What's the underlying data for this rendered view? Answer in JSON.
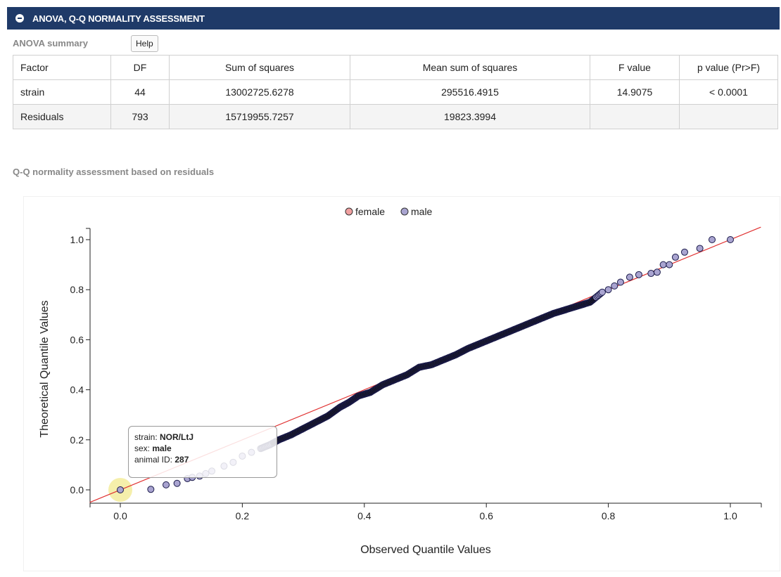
{
  "header": {
    "title": "ANOVA, Q-Q NORMALITY ASSESSMENT"
  },
  "anova": {
    "title": "ANOVA summary",
    "help_label": "Help",
    "columns": [
      "Factor",
      "DF",
      "Sum of squares",
      "Mean sum of squares",
      "F value",
      "p value (Pr>F)"
    ],
    "rows": [
      [
        "strain",
        "44",
        "13002725.6278",
        "295516.4915",
        "14.9075",
        "< 0.0001"
      ],
      [
        "Residuals",
        "793",
        "15719955.7257",
        "19823.3994",
        "",
        ""
      ]
    ]
  },
  "qq": {
    "title": "Q-Q normality assessment based on residuals"
  },
  "tooltip": {
    "strain_label": "strain: ",
    "strain_value": "NOR/LtJ",
    "sex_label": "sex: ",
    "sex_value": "male",
    "id_label": "animal ID: ",
    "id_value": "287"
  },
  "colors": {
    "header_bg": "#1f3a68",
    "female": "#f0a0a0",
    "male": "#a9a4d0",
    "point_stroke": "#1a1a4a",
    "ref_line": "#e03030",
    "highlight": "#f3ec9c"
  },
  "chart_data": {
    "type": "scatter",
    "xlabel": "Observed Quantile Values",
    "ylabel": "Theoretical Quantile Values",
    "xlim": [
      -0.05,
      1.05
    ],
    "ylim": [
      -0.05,
      1.05
    ],
    "x_ticks": [
      "0.0",
      "0.2",
      "0.4",
      "0.6",
      "0.8",
      "1.0"
    ],
    "y_ticks": [
      "0.0",
      "0.2",
      "0.4",
      "0.6",
      "0.8",
      "1.0"
    ],
    "legend": [
      {
        "name": "female",
        "color": "#f0a0a0"
      },
      {
        "name": "male",
        "color": "#a9a4d0"
      }
    ],
    "legend_position": "top-center",
    "reference_line": [
      [
        -0.05,
        -0.05
      ],
      [
        1.05,
        1.05
      ]
    ],
    "series": [
      {
        "name": "male",
        "points": [
          [
            0.0,
            0.0
          ],
          [
            0.05,
            0.002
          ],
          [
            0.075,
            0.02
          ],
          [
            0.093,
            0.026
          ],
          [
            0.11,
            0.045
          ],
          [
            0.118,
            0.05
          ],
          [
            0.13,
            0.055
          ],
          [
            0.14,
            0.065
          ],
          [
            0.15,
            0.075
          ],
          [
            0.17,
            0.095
          ],
          [
            0.185,
            0.11
          ],
          [
            0.2,
            0.135
          ],
          [
            0.215,
            0.15
          ],
          [
            0.23,
            0.165
          ],
          [
            0.245,
            0.18
          ],
          [
            0.26,
            0.2
          ],
          [
            0.28,
            0.22
          ],
          [
            0.3,
            0.245
          ],
          [
            0.32,
            0.27
          ],
          [
            0.34,
            0.295
          ],
          [
            0.36,
            0.33
          ],
          [
            0.375,
            0.35
          ],
          [
            0.39,
            0.375
          ],
          [
            0.41,
            0.39
          ],
          [
            0.43,
            0.42
          ],
          [
            0.45,
            0.44
          ],
          [
            0.47,
            0.46
          ],
          [
            0.49,
            0.49
          ],
          [
            0.51,
            0.5
          ],
          [
            0.53,
            0.52
          ],
          [
            0.55,
            0.54
          ],
          [
            0.57,
            0.565
          ],
          [
            0.59,
            0.585
          ],
          [
            0.61,
            0.605
          ],
          [
            0.63,
            0.625
          ],
          [
            0.65,
            0.645
          ],
          [
            0.67,
            0.665
          ],
          [
            0.69,
            0.685
          ],
          [
            0.71,
            0.705
          ],
          [
            0.73,
            0.72
          ],
          [
            0.75,
            0.735
          ],
          [
            0.77,
            0.75
          ],
          [
            0.79,
            0.79
          ],
          [
            0.8,
            0.8
          ],
          [
            0.81,
            0.815
          ],
          [
            0.82,
            0.83
          ],
          [
            0.835,
            0.85
          ],
          [
            0.85,
            0.86
          ],
          [
            0.87,
            0.865
          ],
          [
            0.88,
            0.87
          ],
          [
            0.89,
            0.9
          ],
          [
            0.9,
            0.9
          ],
          [
            0.91,
            0.93
          ],
          [
            0.925,
            0.95
          ],
          [
            0.95,
            0.965
          ],
          [
            0.97,
            1.0
          ],
          [
            1.0,
            1.0
          ]
        ]
      },
      {
        "name": "female",
        "points": []
      }
    ]
  }
}
